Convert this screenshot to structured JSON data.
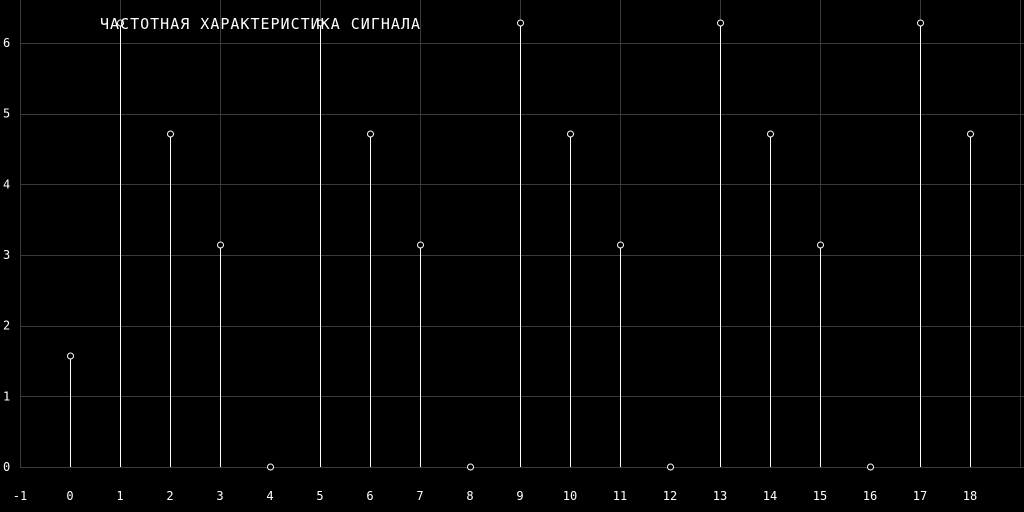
{
  "chart_data": {
    "type": "stem",
    "title": "ЧАСТОТНАЯ ХАРАКТЕРИСТИКА СИГНАЛА",
    "xlabel": "",
    "ylabel": "",
    "x": [
      0,
      1,
      2,
      3,
      4,
      5,
      6,
      7,
      8,
      9,
      10,
      11,
      12,
      13,
      14,
      15,
      16,
      17,
      18
    ],
    "values": [
      1.571,
      6.283,
      4.712,
      3.142,
      0,
      6.283,
      4.712,
      3.142,
      0,
      6.283,
      4.712,
      3.142,
      0,
      6.283,
      4.712,
      3.142,
      0,
      6.283,
      4.712
    ],
    "xlim": [
      -1,
      19
    ],
    "ylim": [
      0,
      6.283
    ],
    "x_ticks": [
      -1,
      0,
      1,
      2,
      3,
      4,
      5,
      6,
      7,
      8,
      9,
      10,
      11,
      12,
      13,
      14,
      15,
      16,
      17,
      18
    ],
    "y_ticks": [
      0,
      1,
      2,
      3,
      4,
      5,
      6
    ],
    "grid": true,
    "colors": {
      "background": "#000000",
      "grid": "#3a3a3a",
      "stem": "#ffffff",
      "text": "#ffffff"
    }
  }
}
